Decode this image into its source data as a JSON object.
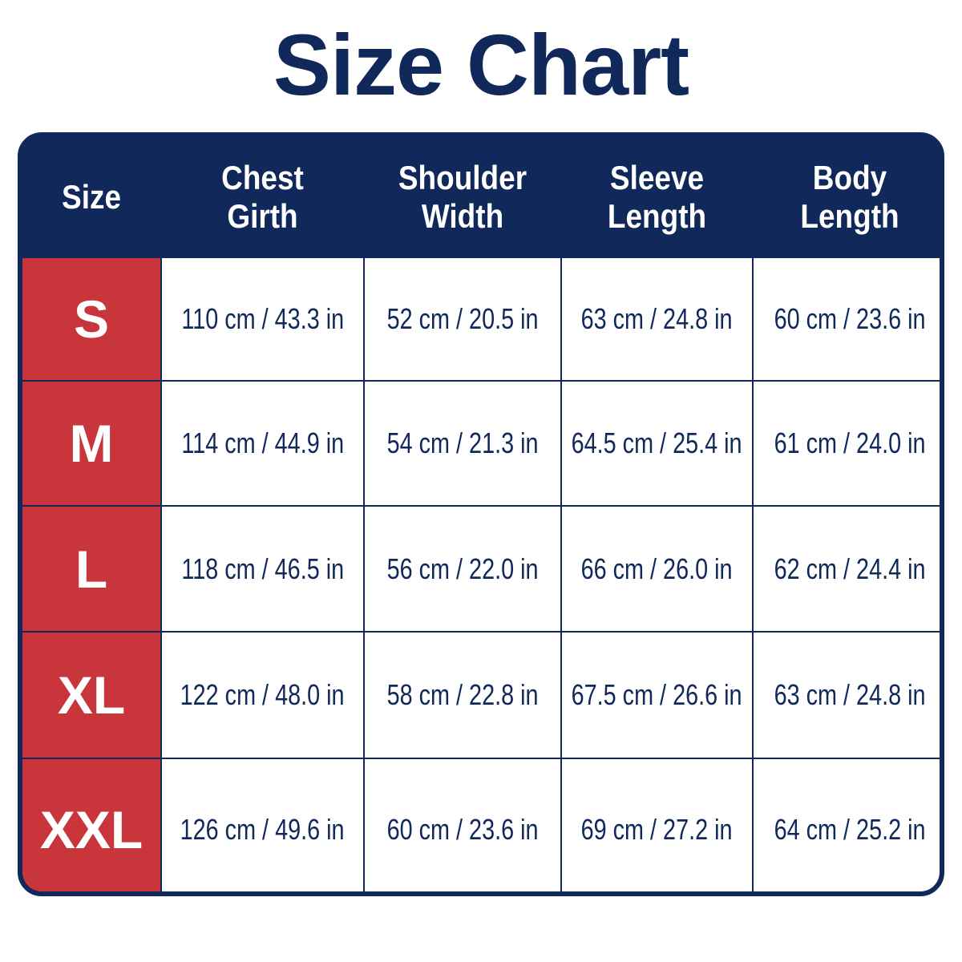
{
  "title": "Size Chart",
  "table": {
    "headers": [
      "Size",
      "Chest Girth",
      "Shoulder Width",
      "Sleeve Length",
      "Body Length"
    ],
    "rows": [
      [
        "S",
        "110 cm / 43.3 in",
        "52 cm / 20.5 in",
        "63 cm / 24.8 in",
        "60 cm / 23.6 in"
      ],
      [
        "M",
        "114 cm / 44.9 in",
        "54 cm / 21.3 in",
        "64.5 cm / 25.4 in",
        "61 cm / 24.0 in"
      ],
      [
        "L",
        "118 cm / 46.5 in",
        "56 cm / 22.0 in",
        "66 cm / 26.0 in",
        "62 cm / 24.4 in"
      ],
      [
        "XL",
        "122 cm / 48.0 in",
        "58 cm / 22.8 in",
        "67.5 cm / 26.6 in",
        "63 cm / 24.8 in"
      ],
      [
        "XXL",
        "126 cm / 49.6 in",
        "60 cm / 23.6 in",
        "69 cm / 27.2 in",
        "64 cm / 25.2 in"
      ]
    ]
  }
}
